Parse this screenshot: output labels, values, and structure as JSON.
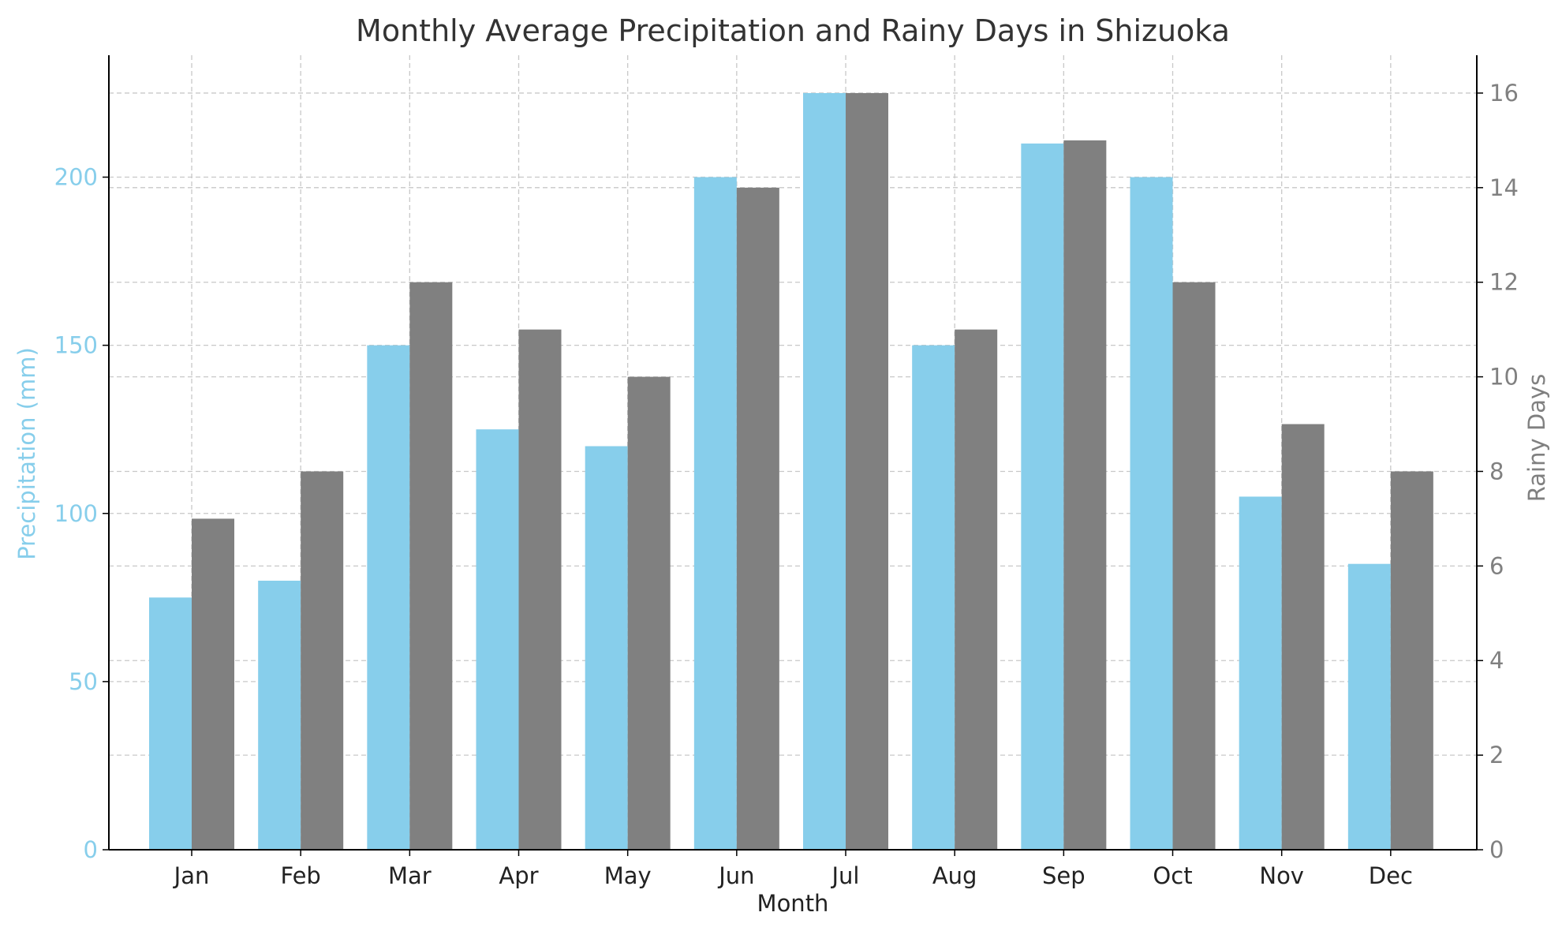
{
  "chart_data": {
    "type": "bar",
    "title": "Monthly Average Precipitation and Rainy Days in Shizuoka",
    "xlabel": "Month",
    "categories": [
      "Jan",
      "Feb",
      "Mar",
      "Apr",
      "May",
      "Jun",
      "Jul",
      "Aug",
      "Sep",
      "Oct",
      "Nov",
      "Dec"
    ],
    "series": [
      {
        "name": "Precipitation (mm)",
        "axis": "left",
        "color": "#87CEEB",
        "values": [
          75,
          80,
          150,
          125,
          120,
          200,
          225,
          150,
          210,
          200,
          105,
          85
        ]
      },
      {
        "name": "Rainy Days",
        "axis": "right",
        "color": "#808080",
        "values": [
          7,
          8,
          12,
          11,
          10,
          14,
          16,
          11,
          15,
          12,
          9,
          8
        ]
      }
    ],
    "left_axis": {
      "label": "Precipitation (mm)",
      "color": "#87CEEB",
      "ylim": [
        0,
        236.25
      ],
      "ticks": [
        0,
        50,
        100,
        150,
        200
      ]
    },
    "right_axis": {
      "label": "Rainy Days",
      "color": "#808080",
      "ylim": [
        0,
        16.8
      ],
      "ticks": [
        0,
        2,
        4,
        6,
        8,
        10,
        12,
        14,
        16
      ]
    },
    "grid": true
  }
}
